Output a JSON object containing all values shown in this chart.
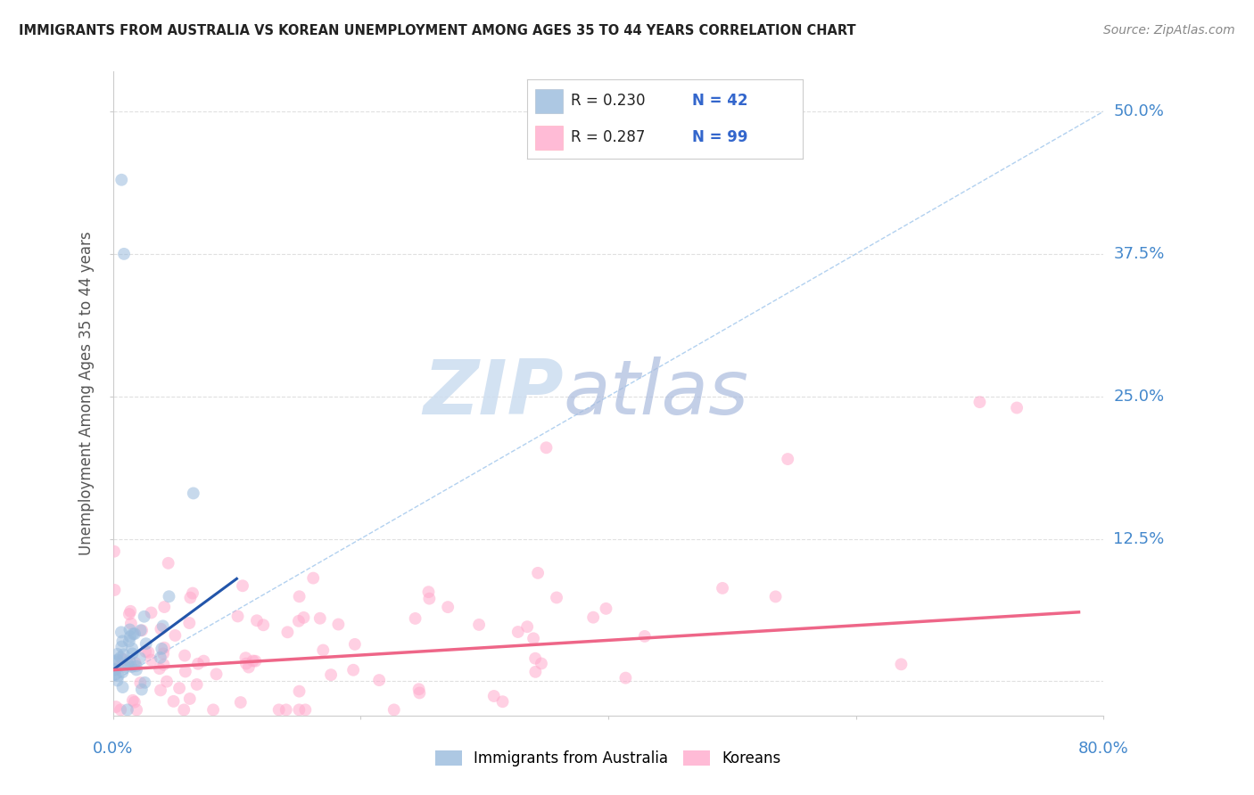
{
  "title": "IMMIGRANTS FROM AUSTRALIA VS KOREAN UNEMPLOYMENT AMONG AGES 35 TO 44 YEARS CORRELATION CHART",
  "source": "Source: ZipAtlas.com",
  "ylabel": "Unemployment Among Ages 35 to 44 years",
  "xlim": [
    0.0,
    0.8
  ],
  "ylim": [
    -0.03,
    0.535
  ],
  "yticks": [
    0.0,
    0.125,
    0.25,
    0.375,
    0.5
  ],
  "ytick_labels": [
    "",
    "12.5%",
    "25.0%",
    "37.5%",
    "50.0%"
  ],
  "background_color": "#ffffff",
  "watermark_zip": "ZIP",
  "watermark_atlas": "atlas",
  "legend_r1": "R = 0.230",
  "legend_n1": "N = 42",
  "legend_r2": "R = 0.287",
  "legend_n2": "N = 99",
  "blue_color": "#99BBDD",
  "pink_color": "#FFAACC",
  "blue_scatter_edge": "#99BBDD",
  "pink_scatter_edge": "#FFAACC",
  "blue_line_color": "#2255AA",
  "pink_line_color": "#EE6688",
  "diag_color": "#AACCEE",
  "dot_alpha": 0.55,
  "dot_size": 100,
  "seed": 42,
  "n_blue": 42,
  "n_pink": 99,
  "title_color": "#222222",
  "axis_label_color": "#555555",
  "tick_label_color": "#4488CC",
  "grid_color": "#DDDDDD",
  "legend_text_color": "#222222",
  "legend_value_color": "#3366CC"
}
